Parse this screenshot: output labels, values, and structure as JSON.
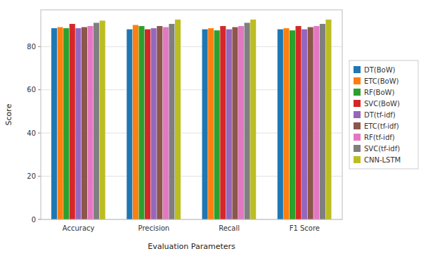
{
  "chart_data": {
    "type": "bar",
    "xlabel": "Evaluation Parameters",
    "ylabel": "Score",
    "categories": [
      "Accuracy",
      "Precision",
      "Recall",
      "F1 Score"
    ],
    "series": [
      {
        "name": "DT(BoW)",
        "color": "#1f77b4",
        "values": [
          88.5,
          88.0,
          88.0,
          88.0
        ]
      },
      {
        "name": "ETC(BoW)",
        "color": "#ff7f0e",
        "values": [
          89.0,
          90.0,
          88.5,
          88.5
        ]
      },
      {
        "name": "RF(BoW)",
        "color": "#2ca02c",
        "values": [
          88.5,
          89.5,
          87.5,
          87.5
        ]
      },
      {
        "name": "SVC(BoW)",
        "color": "#d62728",
        "values": [
          90.5,
          88.0,
          89.5,
          89.5
        ]
      },
      {
        "name": "DT(tf-idf)",
        "color": "#9467bd",
        "values": [
          88.5,
          88.5,
          88.0,
          88.0
        ]
      },
      {
        "name": "ETC(tf-idf)",
        "color": "#8c564b",
        "values": [
          89.0,
          89.5,
          89.0,
          89.0
        ]
      },
      {
        "name": "RF(tf-idf)",
        "color": "#e377c2",
        "values": [
          89.5,
          89.0,
          89.5,
          89.5
        ]
      },
      {
        "name": "SVC(tf-idf)",
        "color": "#7f7f7f",
        "values": [
          91.0,
          90.5,
          91.0,
          90.5
        ]
      },
      {
        "name": "CNN-LSTM",
        "color": "#bcbd22",
        "values": [
          92.0,
          92.5,
          92.5,
          92.5
        ]
      }
    ],
    "ylim": [
      0,
      97
    ],
    "yticks": [
      0,
      20,
      40,
      60,
      80
    ],
    "grid": true,
    "legend": "right"
  }
}
